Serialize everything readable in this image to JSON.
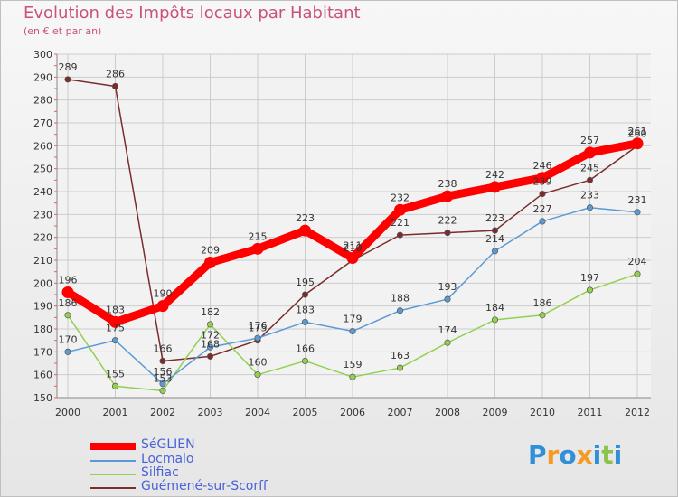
{
  "chart_data": {
    "type": "line",
    "title": "Evolution des Impôts locaux par Habitant",
    "subtitle": "(en € et par an)",
    "categories": [
      "2000",
      "2001",
      "2002",
      "2003",
      "2004",
      "2005",
      "2006",
      "2007",
      "2008",
      "2009",
      "2010",
      "2011",
      "2012"
    ],
    "ylim": [
      150,
      300
    ],
    "yticks": [
      150,
      160,
      170,
      180,
      190,
      200,
      210,
      220,
      230,
      240,
      250,
      260,
      270,
      280,
      290,
      300
    ],
    "grid": true,
    "series": [
      {
        "name": "SéGLIEN",
        "color": "#ff0000",
        "values": [
          196,
          183,
          190,
          209,
          215,
          223,
          211,
          232,
          238,
          242,
          246,
          257,
          261
        ]
      },
      {
        "name": "Locmalo",
        "color": "#5b9bd5",
        "values": [
          170,
          175,
          156,
          172,
          176,
          183,
          179,
          188,
          193,
          214,
          227,
          233,
          231
        ]
      },
      {
        "name": "Silfiac",
        "color": "#92d050",
        "values": [
          186,
          155,
          153,
          182,
          160,
          166,
          159,
          163,
          174,
          184,
          186,
          197,
          204
        ]
      },
      {
        "name": "Guémené-sur-Scorff",
        "color": "#7b2c2c",
        "values": [
          289,
          286,
          166,
          168,
          175,
          195,
          210,
          221,
          222,
          223,
          239,
          245,
          260
        ]
      }
    ]
  },
  "logo": {
    "text": "Proxiti",
    "letters": [
      "P",
      "r",
      "o",
      "x",
      "i",
      "t",
      "i"
    ],
    "colors": [
      "#2f8fd8",
      "#f59a23",
      "#2f8fd8",
      "#f59a23",
      "#2f8fd8",
      "#8bc34a",
      "#2f8fd8"
    ]
  }
}
